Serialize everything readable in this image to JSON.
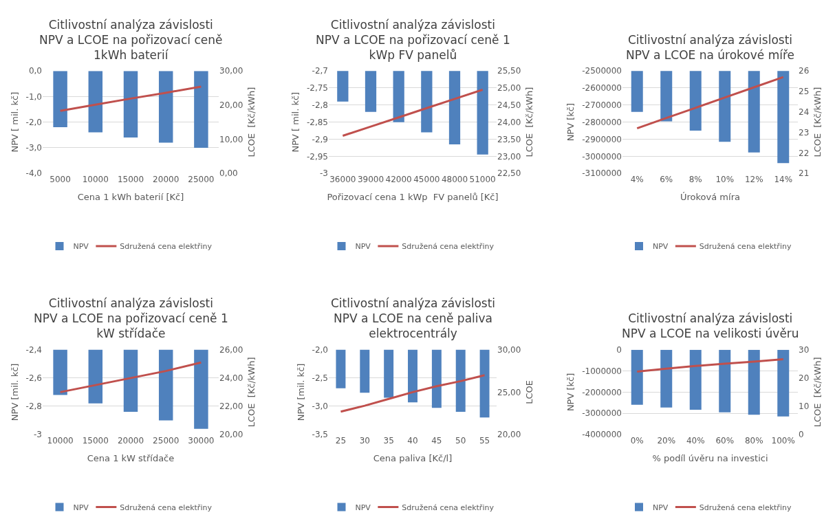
{
  "chart_data": [
    {
      "type": "bar",
      "title": "Citlivostní analýza závislosti NPV a LCOE na pořizovací ceně 1kWh baterií",
      "xlabel": "Cena 1 kWh baterií [Kč]",
      "ylabel": "NPV [ mil. kč]",
      "y2label": "LCOE  [Kč/kWh]",
      "categories": [
        "5000",
        "10000",
        "15000",
        "20000",
        "25000"
      ],
      "series": [
        {
          "name": "NPV",
          "color": "#4f81bd",
          "values": [
            -2.2,
            -2.4,
            -2.6,
            -2.8,
            -3.0
          ]
        },
        {
          "name": "Sdružená cena elektřiny",
          "color": "#c0504d",
          "type": "line",
          "axis": "y2",
          "values": [
            18.3,
            20.1,
            21.9,
            23.6,
            25.4
          ]
        }
      ],
      "ylim": [
        -4,
        0
      ],
      "yticks": [
        {
          "value": -4,
          "label": "-4,0"
        },
        {
          "value": -3,
          "label": "-3,0"
        },
        {
          "value": -2,
          "label": "-2,0"
        },
        {
          "value": -1,
          "label": "-1,0"
        },
        {
          "value": 0,
          "label": "0,0"
        }
      ],
      "y2lim": [
        0,
        30
      ],
      "y2ticks": [
        {
          "value": 0,
          "label": "0,00"
        },
        {
          "value": 10,
          "label": "10,00"
        },
        {
          "value": 20,
          "label": "20,00"
        },
        {
          "value": 30,
          "label": "30,00"
        }
      ],
      "grid": "y",
      "legend": "bottom"
    },
    {
      "type": "bar",
      "title": "Citlivostní analýza závislosti NPV a LCOE na pořizovací ceně 1 kWp FV panelů",
      "xlabel": "Pořizovací cena 1 kWp  FV panelů [Kč]",
      "ylabel": "NPV [ mil. kč]",
      "y2label": "LCOE  [Kč/kWh]",
      "categories": [
        "36000",
        "39000",
        "42000",
        "45000",
        "48000",
        "51000"
      ],
      "series": [
        {
          "name": "NPV",
          "color": "#4f81bd",
          "values": [
            -2.79,
            -2.82,
            -2.85,
            -2.88,
            -2.915,
            -2.945
          ]
        },
        {
          "name": "Sdružená cena elektřiny",
          "color": "#c0504d",
          "type": "line",
          "axis": "y2",
          "values": [
            23.6,
            23.87,
            24.14,
            24.41,
            24.68,
            24.95
          ]
        }
      ],
      "ylim": [
        -3,
        -2.7
      ],
      "yticks": [
        {
          "value": -3,
          "label": "-3"
        },
        {
          "value": -2.95,
          "label": "-2,95"
        },
        {
          "value": -2.9,
          "label": "-2,9"
        },
        {
          "value": -2.85,
          "label": "-2,85"
        },
        {
          "value": -2.8,
          "label": "-2,8"
        },
        {
          "value": -2.75,
          "label": "-2,75"
        },
        {
          "value": -2.7,
          "label": "-2,7"
        }
      ],
      "y2lim": [
        22.5,
        25.5
      ],
      "y2ticks": [
        {
          "value": 22.5,
          "label": "22,50"
        },
        {
          "value": 23,
          "label": "23,00"
        },
        {
          "value": 23.5,
          "label": "23,50"
        },
        {
          "value": 24,
          "label": "24,00"
        },
        {
          "value": 24.5,
          "label": "24,50"
        },
        {
          "value": 25,
          "label": "25,00"
        },
        {
          "value": 25.5,
          "label": "25,50"
        }
      ],
      "grid": "y",
      "legend": "bottom"
    },
    {
      "type": "bar",
      "title": "Citlivostní analýza závislosti NPV a LCOE na úrokové míře",
      "xlabel": "Úroková míra",
      "ylabel": "NPV [kč]",
      "y2label": "LCOE  [Kč/kWh]",
      "categories": [
        "4%",
        "6%",
        "8%",
        "10%",
        "12%",
        "14%"
      ],
      "series": [
        {
          "name": "NPV",
          "color": "#4f81bd",
          "values": [
            -2740000,
            -2795000,
            -2850000,
            -2915000,
            -2978000,
            -3040000
          ]
        },
        {
          "name": "Sdružená cena elektřiny",
          "color": "#c0504d",
          "type": "line",
          "axis": "y2",
          "values": [
            23.2,
            23.7,
            24.2,
            24.7,
            25.2,
            25.7
          ]
        }
      ],
      "ylim": [
        -3100000,
        -2500000
      ],
      "yticks": [
        -3100000,
        -3000000,
        -2900000,
        -2800000,
        -2700000,
        -2600000,
        -2500000
      ],
      "y2lim": [
        21,
        26
      ],
      "y2ticks": [
        21,
        22,
        23,
        24,
        25,
        26
      ],
      "grid": "y",
      "legend": "bottom"
    },
    {
      "type": "bar",
      "title": "Citlivostní analýza závislosti NPV a LCOE na pořizovací ceně 1 kW střídače",
      "xlabel": "Cena 1 kW střídače",
      "ylabel": "NPV [mil. kč]",
      "y2label": "LCOE  [Kč/kWh]",
      "categories": [
        "10000",
        "15000",
        "20000",
        "25000",
        "30000"
      ],
      "series": [
        {
          "name": "NPV",
          "color": "#4f81bd",
          "values": [
            -2.72,
            -2.78,
            -2.84,
            -2.9,
            -2.96
          ]
        },
        {
          "name": "Sdružená cena elektřiny",
          "color": "#c0504d",
          "type": "line",
          "axis": "y2",
          "values": [
            23.0,
            23.5,
            24.0,
            24.5,
            25.1
          ]
        }
      ],
      "ylim": [
        -3,
        -2.4
      ],
      "yticks": [
        {
          "value": -3,
          "label": "-3"
        },
        {
          "value": -2.8,
          "label": "-2,8"
        },
        {
          "value": -2.6,
          "label": "-2,6"
        },
        {
          "value": -2.4,
          "label": "-2,4"
        }
      ],
      "y2lim": [
        20,
        26
      ],
      "y2ticks": [
        {
          "value": 20,
          "label": "20,00"
        },
        {
          "value": 22,
          "label": "22,00"
        },
        {
          "value": 24,
          "label": "24,00"
        },
        {
          "value": 26,
          "label": "26,00"
        }
      ],
      "grid": "y",
      "legend": "bottom"
    },
    {
      "type": "bar",
      "title": "Citlivostní analýza závislosti NPV a LCOE na ceně paliva elektrocentrály",
      "xlabel": "Cena paliva [Kč/l]",
      "ylabel": "NPV [mil. kč]",
      "y2label": "LCOE",
      "categories": [
        "25",
        "30",
        "35",
        "40",
        "45",
        "50",
        "55"
      ],
      "series": [
        {
          "name": "NPV",
          "color": "#4f81bd",
          "values": [
            -2.68,
            -2.76,
            -2.85,
            -2.93,
            -3.03,
            -3.1,
            -3.2
          ]
        },
        {
          "name": "Sdružená cena elektřiny",
          "color": "#c0504d",
          "type": "line",
          "axis": "y2",
          "values": [
            22.7,
            23.4,
            24.2,
            25.0,
            25.7,
            26.3,
            27.0
          ]
        }
      ],
      "ylim": [
        -3.5,
        -2
      ],
      "yticks": [
        {
          "value": -3.5,
          "label": "-3,5"
        },
        {
          "value": -3,
          "label": "-3,0"
        },
        {
          "value": -2.5,
          "label": "-2,5"
        },
        {
          "value": -2,
          "label": "-2,0"
        }
      ],
      "y2lim": [
        20,
        30
      ],
      "y2ticks": [
        {
          "value": 20,
          "label": "20,00"
        },
        {
          "value": 25,
          "label": "25,00"
        },
        {
          "value": 30,
          "label": "30,00"
        }
      ],
      "grid": "y",
      "legend": "bottom"
    },
    {
      "type": "bar",
      "title": "Citlivostní analýza závislosti NPV a LCOE na velikosti úvěru",
      "xlabel": "% podíl úvěru na investici",
      "ylabel": "NPV [kč]",
      "y2label": "LCOE  [Kč/kWh]",
      "categories": [
        "0%",
        "20%",
        "40%",
        "60%",
        "80%",
        "100%"
      ],
      "series": [
        {
          "name": "NPV",
          "color": "#4f81bd",
          "values": [
            -2600000,
            -2730000,
            -2830000,
            -2950000,
            -3070000,
            -3150000
          ]
        },
        {
          "name": "Sdružená cena elektřiny",
          "color": "#c0504d",
          "type": "line",
          "axis": "y2",
          "values": [
            22.3,
            23.3,
            24.3,
            25.1,
            25.8,
            26.7
          ]
        }
      ],
      "ylim": [
        -4000000,
        0
      ],
      "yticks": [
        -4000000,
        -3000000,
        -2000000,
        -1000000,
        0
      ],
      "y2lim": [
        0,
        30
      ],
      "y2ticks": [
        0,
        10,
        20,
        30
      ],
      "grid": "y",
      "legend": "bottom"
    }
  ]
}
